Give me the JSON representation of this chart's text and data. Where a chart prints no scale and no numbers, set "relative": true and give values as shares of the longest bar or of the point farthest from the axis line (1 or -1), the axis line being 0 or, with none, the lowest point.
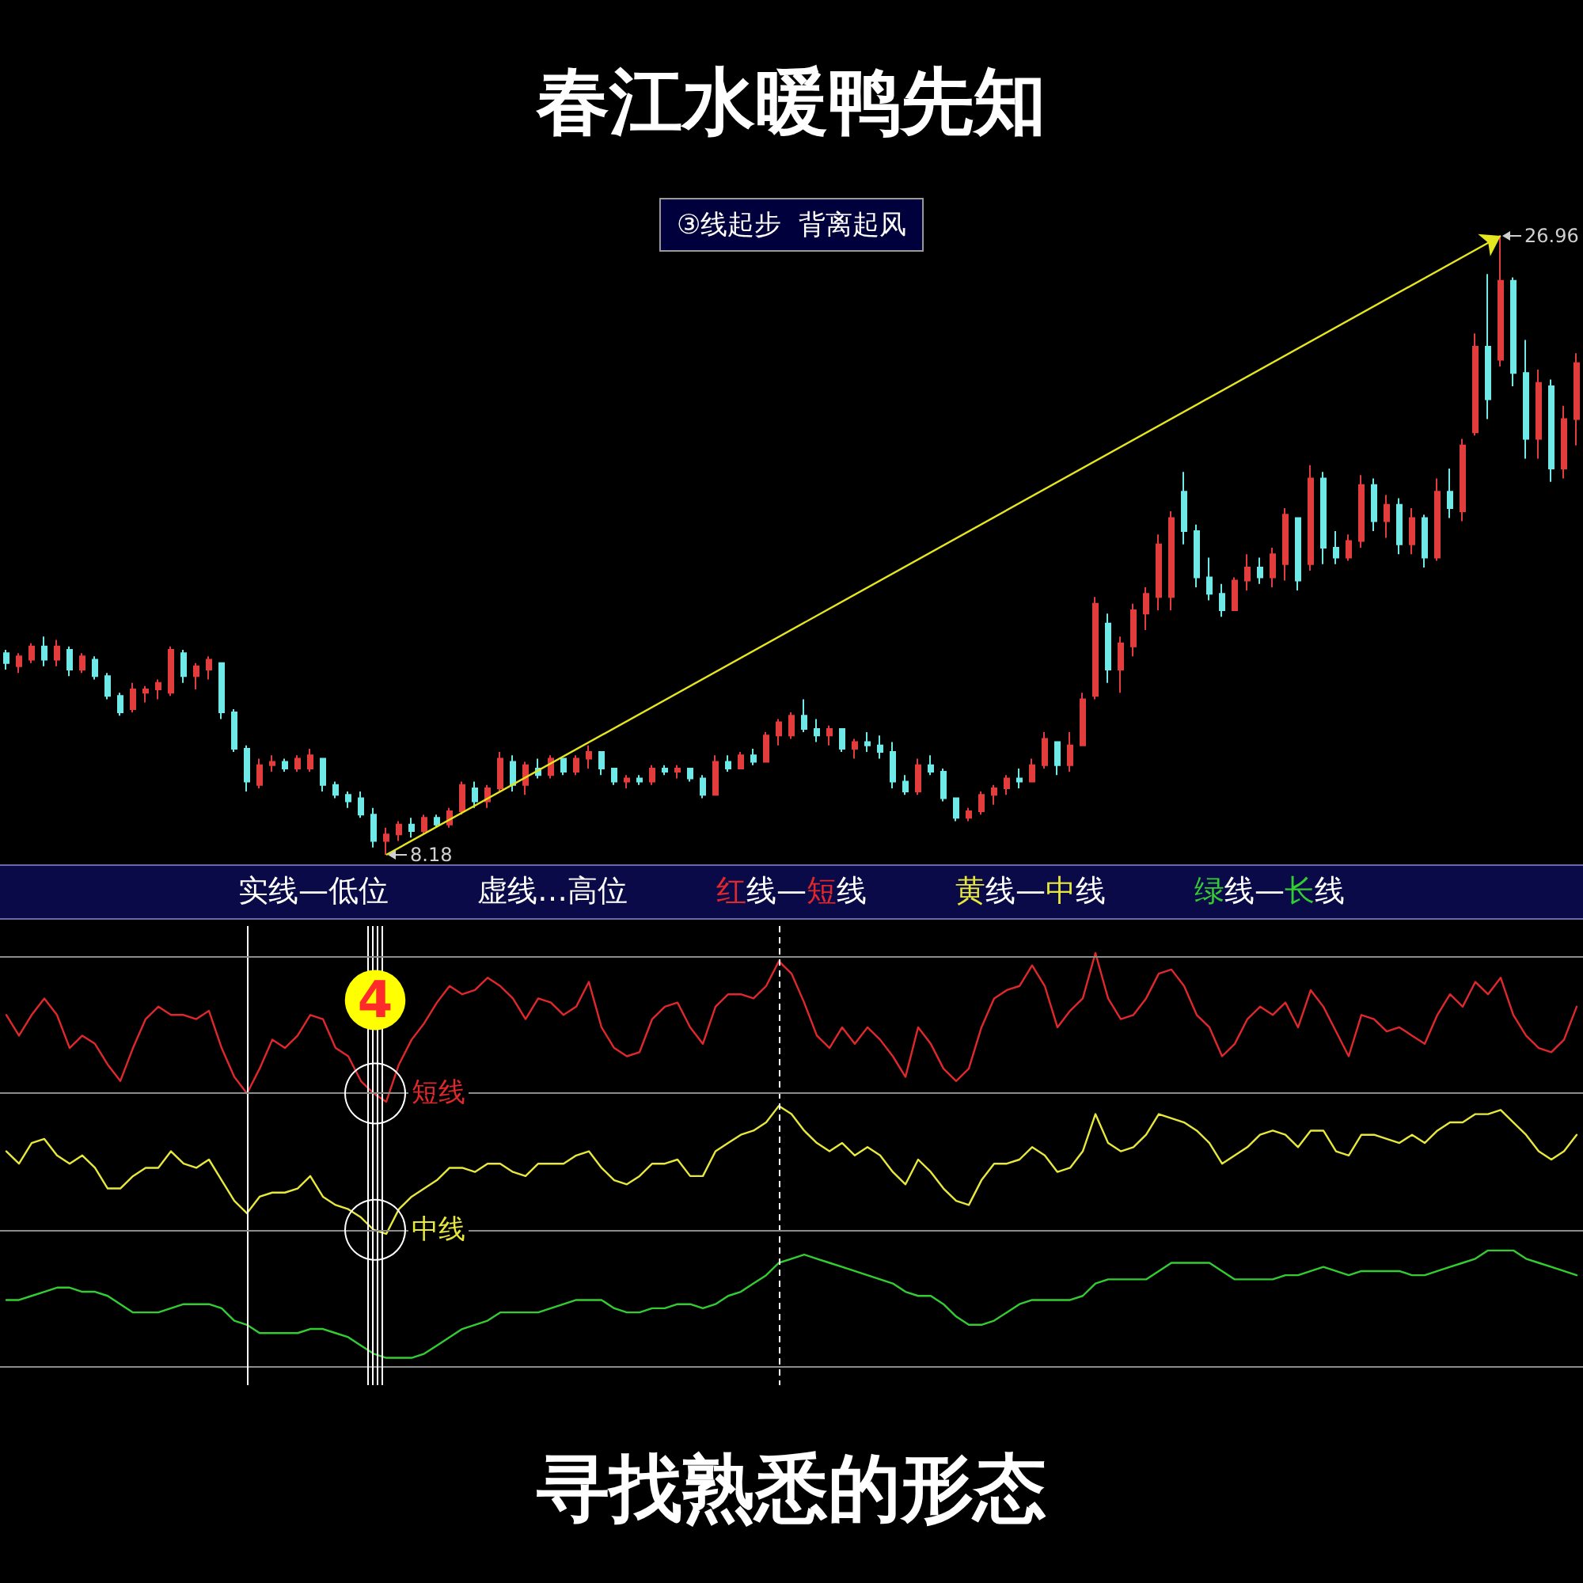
{
  "chart_data": [
    {
      "type": "candlestick",
      "title": "春江水暖鸭先知",
      "annotations": [
        "③线起步  背离起风"
      ],
      "tick_labels": false,
      "categories": [
        null,
        null,
        null,
        null,
        null,
        null,
        null,
        null,
        null,
        null,
        null,
        null,
        null,
        null,
        null,
        null,
        null,
        null,
        null,
        null,
        null,
        null,
        null,
        null,
        null,
        null,
        null,
        null,
        null,
        null,
        null,
        null,
        null,
        null,
        null,
        null,
        null,
        null,
        null,
        null,
        null,
        null,
        null,
        null,
        null,
        null,
        null,
        null,
        null,
        null,
        null,
        null,
        null,
        null,
        null,
        null,
        null,
        null,
        null,
        null,
        null,
        null,
        null,
        null,
        null,
        null,
        null,
        null,
        null,
        null,
        null,
        null,
        null,
        null,
        null,
        null,
        null,
        null,
        null,
        null,
        null,
        null,
        null,
        null,
        null,
        null,
        null,
        null,
        null,
        null,
        null,
        null,
        null,
        null,
        null,
        null,
        null,
        null,
        null,
        null,
        null,
        null,
        null,
        null,
        null,
        null,
        null,
        null,
        null,
        null,
        null,
        null,
        null,
        null,
        null,
        null,
        null,
        null,
        null,
        null,
        null,
        null,
        null,
        null,
        null
      ],
      "ohlc": [
        [
          14.3,
          14.4,
          13.8,
          14.0
        ],
        [
          13.9,
          14.3,
          13.7,
          14.2
        ],
        [
          14.1,
          14.6,
          14.0,
          14.5
        ],
        [
          14.5,
          14.8,
          13.9,
          14.1
        ],
        [
          14.1,
          14.7,
          13.9,
          14.5
        ],
        [
          14.4,
          14.5,
          13.6,
          13.8
        ],
        [
          13.8,
          14.3,
          13.7,
          14.2
        ],
        [
          14.1,
          14.2,
          13.5,
          13.6
        ],
        [
          13.6,
          13.7,
          12.9,
          13.0
        ],
        [
          13.0,
          13.1,
          12.4,
          12.5
        ],
        [
          12.6,
          13.4,
          12.5,
          13.2
        ],
        [
          13.1,
          13.3,
          12.8,
          13.2
        ],
        [
          13.2,
          13.5,
          12.9,
          13.4
        ],
        [
          13.1,
          14.5,
          13.0,
          14.4
        ],
        [
          14.3,
          14.4,
          13.4,
          13.6
        ],
        [
          13.6,
          14.0,
          13.2,
          13.9
        ],
        [
          13.8,
          14.2,
          13.5,
          14.1
        ],
        [
          14.0,
          14.0,
          12.3,
          12.5
        ],
        [
          12.5,
          12.6,
          11.3,
          11.4
        ],
        [
          11.4,
          11.5,
          10.1,
          10.4
        ],
        [
          10.3,
          11.1,
          10.2,
          10.9
        ],
        [
          10.9,
          11.2,
          10.7,
          11.0
        ],
        [
          11.0,
          11.1,
          10.7,
          10.8
        ],
        [
          10.8,
          11.2,
          10.7,
          11.1
        ],
        [
          10.8,
          11.4,
          10.7,
          11.2
        ],
        [
          11.1,
          11.1,
          10.1,
          10.3
        ],
        [
          10.3,
          10.4,
          9.9,
          10.0
        ],
        [
          10.0,
          10.1,
          9.6,
          9.8
        ],
        [
          9.9,
          10.1,
          9.3,
          9.4
        ],
        [
          9.4,
          9.6,
          8.4,
          8.6
        ],
        [
          8.6,
          9.0,
          8.18,
          8.8
        ],
        [
          8.8,
          9.2,
          8.6,
          9.1
        ],
        [
          9.1,
          9.3,
          8.7,
          8.9
        ],
        [
          8.9,
          9.4,
          8.8,
          9.3
        ],
        [
          9.3,
          9.4,
          9.0,
          9.1
        ],
        [
          9.1,
          9.6,
          9.0,
          9.5
        ],
        [
          9.5,
          10.4,
          9.4,
          10.3
        ],
        [
          10.2,
          10.4,
          9.6,
          9.8
        ],
        [
          9.8,
          10.3,
          9.6,
          10.2
        ],
        [
          10.2,
          11.3,
          10.1,
          11.1
        ],
        [
          11.0,
          11.2,
          10.1,
          10.3
        ],
        [
          10.3,
          11.0,
          10.0,
          10.9
        ],
        [
          10.8,
          11.1,
          10.5,
          10.6
        ],
        [
          10.6,
          11.2,
          10.5,
          11.1
        ],
        [
          11.1,
          11.1,
          10.6,
          10.7
        ],
        [
          10.7,
          11.2,
          10.6,
          11.1
        ],
        [
          11.1,
          11.5,
          10.8,
          11.3
        ],
        [
          11.3,
          11.3,
          10.6,
          10.8
        ],
        [
          10.8,
          10.8,
          10.3,
          10.4
        ],
        [
          10.4,
          10.6,
          10.2,
          10.5
        ],
        [
          10.5,
          10.6,
          10.3,
          10.4
        ],
        [
          10.4,
          10.9,
          10.3,
          10.8
        ],
        [
          10.8,
          10.9,
          10.6,
          10.7
        ],
        [
          10.7,
          10.9,
          10.5,
          10.8
        ],
        [
          10.8,
          10.8,
          10.4,
          10.5
        ],
        [
          10.5,
          10.6,
          9.9,
          10.0
        ],
        [
          10.0,
          11.2,
          10.0,
          11.0
        ],
        [
          11.0,
          11.2,
          10.7,
          10.8
        ],
        [
          10.8,
          11.3,
          10.8,
          11.2
        ],
        [
          11.2,
          11.4,
          10.9,
          11.0
        ],
        [
          11.0,
          11.9,
          11.0,
          11.8
        ],
        [
          11.8,
          12.3,
          11.5,
          12.2
        ],
        [
          11.8,
          12.5,
          11.7,
          12.4
        ],
        [
          12.4,
          12.9,
          11.9,
          12.0
        ],
        [
          12.0,
          12.3,
          11.6,
          11.8
        ],
        [
          11.8,
          12.1,
          11.5,
          12.0
        ],
        [
          12.0,
          12.0,
          11.3,
          11.4
        ],
        [
          11.4,
          11.7,
          11.1,
          11.6
        ],
        [
          11.6,
          11.9,
          11.3,
          11.5
        ],
        [
          11.5,
          11.8,
          11.1,
          11.3
        ],
        [
          11.3,
          11.6,
          10.2,
          10.4
        ],
        [
          10.4,
          10.6,
          10.0,
          10.1
        ],
        [
          10.1,
          11.1,
          10.0,
          10.9
        ],
        [
          10.9,
          11.2,
          10.6,
          10.7
        ],
        [
          10.7,
          10.8,
          9.8,
          9.9
        ],
        [
          9.9,
          9.9,
          9.2,
          9.3
        ],
        [
          9.3,
          9.6,
          9.2,
          9.5
        ],
        [
          9.5,
          10.1,
          9.4,
          10.0
        ],
        [
          10.0,
          10.3,
          9.7,
          10.2
        ],
        [
          10.2,
          10.6,
          10.0,
          10.5
        ],
        [
          10.5,
          10.8,
          10.2,
          10.4
        ],
        [
          10.4,
          11.1,
          10.4,
          10.9
        ],
        [
          10.9,
          11.9,
          10.8,
          11.7
        ],
        [
          11.6,
          11.6,
          10.6,
          10.9
        ],
        [
          10.9,
          11.9,
          10.7,
          11.5
        ],
        [
          11.5,
          13.1,
          11.5,
          12.9
        ],
        [
          13.0,
          16.0,
          12.9,
          15.8
        ],
        [
          15.2,
          15.5,
          13.4,
          13.8
        ],
        [
          13.8,
          14.8,
          13.1,
          14.6
        ],
        [
          14.5,
          15.8,
          14.2,
          15.6
        ],
        [
          15.5,
          16.3,
          15.0,
          16.1
        ],
        [
          16.0,
          17.9,
          15.6,
          17.6
        ],
        [
          16.0,
          18.6,
          15.6,
          18.4
        ],
        [
          19.2,
          19.8,
          17.6,
          18.0
        ],
        [
          18.0,
          18.2,
          16.3,
          16.6
        ],
        [
          16.6,
          17.2,
          15.9,
          16.1
        ],
        [
          16.1,
          16.4,
          15.4,
          15.6
        ],
        [
          15.6,
          16.6,
          15.6,
          16.5
        ],
        [
          16.5,
          17.3,
          16.2,
          16.9
        ],
        [
          16.9,
          17.2,
          16.4,
          16.6
        ],
        [
          16.6,
          17.5,
          16.3,
          17.3
        ],
        [
          17.0,
          18.7,
          16.5,
          18.5
        ],
        [
          18.4,
          18.4,
          16.2,
          16.5
        ],
        [
          17.0,
          20.0,
          16.8,
          19.6
        ],
        [
          19.6,
          19.8,
          17.0,
          17.5
        ],
        [
          17.5,
          18.0,
          17.0,
          17.2
        ],
        [
          17.2,
          17.9,
          17.1,
          17.7
        ],
        [
          17.7,
          19.7,
          17.5,
          19.4
        ],
        [
          19.4,
          19.6,
          18.0,
          18.3
        ],
        [
          18.3,
          19.1,
          17.8,
          18.8
        ],
        [
          18.8,
          19.0,
          17.3,
          17.6
        ],
        [
          17.6,
          18.7,
          17.3,
          18.4
        ],
        [
          18.4,
          18.5,
          16.9,
          17.2
        ],
        [
          17.2,
          19.6,
          17.1,
          19.2
        ],
        [
          19.2,
          19.9,
          18.4,
          18.7
        ],
        [
          18.6,
          20.8,
          18.3,
          20.6
        ],
        [
          21.0,
          24.0,
          20.9,
          23.6
        ],
        [
          23.6,
          25.8,
          21.4,
          22.0
        ],
        [
          23.2,
          26.96,
          23.0,
          25.6
        ],
        [
          25.6,
          25.7,
          22.4,
          22.8
        ],
        [
          22.8,
          23.8,
          20.2,
          20.8
        ],
        [
          20.8,
          22.9,
          20.2,
          22.5
        ],
        [
          22.4,
          22.6,
          19.5,
          19.9
        ],
        [
          19.9,
          21.8,
          19.6,
          21.4
        ],
        [
          21.4,
          23.4,
          20.6,
          23.1
        ]
      ],
      "colors": [
        "#6fe8e8",
        "#e23c3c",
        "#e23c3c",
        "#6fe8e8",
        "#e23c3c",
        "#6fe8e8",
        "#e23c3c",
        "#6fe8e8",
        "#6fe8e8",
        "#6fe8e8",
        "#e23c3c",
        "#e23c3c",
        "#e23c3c",
        "#e23c3c",
        "#6fe8e8",
        "#e23c3c",
        "#e23c3c",
        "#6fe8e8",
        "#6fe8e8",
        "#6fe8e8",
        "#e23c3c",
        "#e23c3c",
        "#6fe8e8",
        "#e23c3c",
        "#e23c3c",
        "#6fe8e8",
        "#6fe8e8",
        "#6fe8e8",
        "#6fe8e8",
        "#6fe8e8",
        "#e23c3c",
        "#e23c3c",
        "#6fe8e8",
        "#e23c3c",
        "#6fe8e8",
        "#e23c3c",
        "#e23c3c",
        "#6fe8e8",
        "#e23c3c",
        "#e23c3c",
        "#6fe8e8",
        "#e23c3c",
        "#6fe8e8",
        "#e23c3c",
        "#6fe8e8",
        "#e23c3c",
        "#e23c3c",
        "#6fe8e8",
        "#6fe8e8",
        "#e23c3c",
        "#6fe8e8",
        "#e23c3c",
        "#6fe8e8",
        "#e23c3c",
        "#6fe8e8",
        "#6fe8e8",
        "#e23c3c",
        "#6fe8e8",
        "#e23c3c",
        "#6fe8e8",
        "#e23c3c",
        "#e23c3c",
        "#e23c3c",
        "#6fe8e8",
        "#6fe8e8",
        "#e23c3c",
        "#6fe8e8",
        "#e23c3c",
        "#6fe8e8",
        "#6fe8e8",
        "#6fe8e8",
        "#6fe8e8",
        "#e23c3c",
        "#6fe8e8",
        "#6fe8e8",
        "#6fe8e8",
        "#e23c3c",
        "#e23c3c",
        "#e23c3c",
        "#e23c3c",
        "#6fe8e8",
        "#e23c3c",
        "#e23c3c",
        "#6fe8e8",
        "#e23c3c",
        "#e23c3c",
        "#e23c3c",
        "#6fe8e8",
        "#e23c3c",
        "#e23c3c",
        "#e23c3c",
        "#e23c3c",
        "#e23c3c",
        "#6fe8e8",
        "#6fe8e8",
        "#6fe8e8",
        "#6fe8e8",
        "#e23c3c",
        "#e23c3c",
        "#6fe8e8",
        "#e23c3c",
        "#e23c3c",
        "#6fe8e8",
        "#e23c3c",
        "#6fe8e8",
        "#6fe8e8",
        "#e23c3c",
        "#e23c3c",
        "#6fe8e8",
        "#e23c3c",
        "#6fe8e8",
        "#e23c3c",
        "#6fe8e8",
        "#e23c3c",
        "#6fe8e8",
        "#e23c3c",
        "#e23c3c",
        "#6fe8e8",
        "#e23c3c",
        "#6fe8e8",
        "#6fe8e8",
        "#e23c3c",
        "#6fe8e8",
        "#e23c3c",
        "#e23c3c"
      ],
      "value_labels": [
        null,
        null,
        null,
        null,
        null,
        null,
        null,
        null,
        null,
        null,
        null,
        null,
        null,
        null,
        null,
        null,
        null,
        null,
        null,
        null,
        null,
        null,
        null,
        null,
        null,
        null,
        null,
        null,
        null,
        null,
        "8.18",
        null,
        null,
        null,
        null,
        null,
        null,
        null,
        null,
        null,
        null,
        null,
        null,
        null,
        null,
        null,
        null,
        null,
        null,
        null,
        null,
        null,
        null,
        null,
        null,
        null,
        null,
        null,
        null,
        null,
        null,
        null,
        null,
        null,
        null,
        null,
        null,
        null,
        null,
        null,
        null,
        null,
        null,
        null,
        null,
        null,
        null,
        null,
        null,
        null,
        null,
        null,
        null,
        null,
        null,
        null,
        null,
        null,
        null,
        null,
        null,
        null,
        null,
        null,
        null,
        null,
        null,
        null,
        null,
        null,
        null,
        null,
        null,
        null,
        null,
        null,
        null,
        null,
        null,
        null,
        null,
        null,
        null,
        null,
        null,
        null,
        null,
        null,
        "26.96",
        null,
        null,
        null,
        null,
        null,
        null
      ]
    },
    {
      "type": "line",
      "title": "寻找熟悉的形态",
      "relative": true,
      "tick_labels": false,
      "annotations": [
        "4",
        "实线—低位",
        "虚线…高位",
        "红线—短线",
        "黄线—中线",
        "绿线—长线"
      ],
      "categories": [
        null,
        null,
        null,
        null,
        null,
        null,
        null,
        null,
        null,
        null,
        null,
        null,
        null,
        null,
        null,
        null,
        null,
        null,
        null,
        null,
        null,
        null,
        null,
        null,
        null,
        null,
        null,
        null,
        null,
        null,
        null,
        null,
        null,
        null,
        null,
        null,
        null,
        null,
        null,
        null,
        null,
        null,
        null,
        null,
        null,
        null,
        null,
        null,
        null,
        null,
        null,
        null,
        null,
        null,
        null,
        null,
        null,
        null,
        null,
        null,
        null,
        null,
        null,
        null,
        null,
        null,
        null,
        null,
        null,
        null,
        null,
        null,
        null,
        null,
        null,
        null,
        null,
        null,
        null,
        null,
        null,
        null,
        null,
        null,
        null,
        null,
        null,
        null,
        null,
        null,
        null,
        null,
        null,
        null,
        null,
        null,
        null,
        null,
        null,
        null,
        null,
        null,
        null,
        null,
        null,
        null,
        null,
        null,
        null,
        null,
        null,
        null,
        null,
        null,
        null,
        null,
        null,
        null,
        null,
        null,
        null,
        null,
        null,
        null,
        null
      ],
      "ref_lines": [
        {
          "axis": "y",
          "value": 0.99,
          "color": "#8c8c8c"
        },
        {
          "axis": "y",
          "value": 0.66,
          "color": "#8c8c8c"
        },
        {
          "axis": "y",
          "value": 0.33,
          "color": "#8c8c8c"
        }
      ],
      "series": [
        {
          "name": "短线",
          "color": "#e0282c",
          "values": [
            0.85,
            0.8,
            0.85,
            0.89,
            0.85,
            0.77,
            0.8,
            0.78,
            0.73,
            0.69,
            0.77,
            0.84,
            0.87,
            0.85,
            0.85,
            0.84,
            0.86,
            0.77,
            0.7,
            0.66,
            0.72,
            0.79,
            0.77,
            0.8,
            0.85,
            0.84,
            0.77,
            0.75,
            0.69,
            0.66,
            0.64,
            0.73,
            0.79,
            0.83,
            0.88,
            0.92,
            0.9,
            0.91,
            0.94,
            0.92,
            0.89,
            0.84,
            0.89,
            0.88,
            0.85,
            0.87,
            0.93,
            0.82,
            0.77,
            0.75,
            0.76,
            0.84,
            0.87,
            0.88,
            0.82,
            0.78,
            0.87,
            0.9,
            0.9,
            0.89,
            0.92,
            0.98,
            0.95,
            0.88,
            0.8,
            0.77,
            0.82,
            0.78,
            0.82,
            0.79,
            0.75,
            0.7,
            0.82,
            0.78,
            0.72,
            0.69,
            0.72,
            0.82,
            0.89,
            0.91,
            0.92,
            0.97,
            0.92,
            0.82,
            0.86,
            0.89,
            1,
            0.89,
            0.84,
            0.85,
            0.89,
            0.95,
            0.96,
            0.92,
            0.85,
            0.82,
            0.75,
            0.78,
            0.84,
            0.87,
            0.85,
            0.88,
            0.82,
            0.91,
            0.87,
            0.81,
            0.75,
            0.85,
            0.84,
            0.81,
            0.82,
            0.8,
            0.78,
            0.85,
            0.9,
            0.87,
            0.93,
            0.9,
            0.94,
            0.85,
            0.8,
            0.77,
            0.76,
            0.79,
            0.87
          ]
        },
        {
          "name": "中线",
          "color": "#e8e83c",
          "values": [
            0.52,
            0.49,
            0.54,
            0.55,
            0.51,
            0.49,
            0.51,
            0.48,
            0.43,
            0.43,
            0.46,
            0.48,
            0.48,
            0.52,
            0.49,
            0.48,
            0.5,
            0.45,
            0.4,
            0.37,
            0.41,
            0.42,
            0.42,
            0.43,
            0.46,
            0.41,
            0.39,
            0.38,
            0.36,
            0.33,
            0.32,
            0.38,
            0.41,
            0.43,
            0.45,
            0.48,
            0.48,
            0.47,
            0.49,
            0.49,
            0.47,
            0.46,
            0.49,
            0.49,
            0.49,
            0.51,
            0.52,
            0.48,
            0.45,
            0.44,
            0.46,
            0.49,
            0.49,
            0.5,
            0.46,
            0.46,
            0.52,
            0.54,
            0.56,
            0.57,
            0.59,
            0.63,
            0.61,
            0.57,
            0.54,
            0.52,
            0.54,
            0.51,
            0.53,
            0.51,
            0.47,
            0.44,
            0.5,
            0.47,
            0.43,
            0.4,
            0.39,
            0.45,
            0.49,
            0.49,
            0.5,
            0.53,
            0.51,
            0.47,
            0.48,
            0.52,
            0.61,
            0.54,
            0.52,
            0.53,
            0.56,
            0.61,
            0.6,
            0.59,
            0.57,
            0.54,
            0.49,
            0.51,
            0.53,
            0.56,
            0.57,
            0.56,
            0.53,
            0.57,
            0.57,
            0.52,
            0.51,
            0.56,
            0.56,
            0.55,
            0.54,
            0.56,
            0.54,
            0.57,
            0.59,
            0.59,
            0.61,
            0.61,
            0.62,
            0.59,
            0.56,
            0.52,
            0.5,
            0.52,
            0.56
          ]
        },
        {
          "color": "#33cc33",
          "values": [
            0.16,
            0.16,
            0.17,
            0.18,
            0.19,
            0.19,
            0.18,
            0.18,
            0.17,
            0.15,
            0.13,
            0.13,
            0.13,
            0.14,
            0.15,
            0.15,
            0.15,
            0.14,
            0.11,
            0.1,
            0.08,
            0.08,
            0.08,
            0.08,
            0.09,
            0.09,
            0.08,
            0.07,
            0.05,
            0.03,
            0.02,
            0.02,
            0.02,
            0.03,
            0.05,
            0.07,
            0.09,
            0.1,
            0.11,
            0.13,
            0.13,
            0.13,
            0.13,
            0.14,
            0.15,
            0.16,
            0.16,
            0.16,
            0.14,
            0.13,
            0.13,
            0.14,
            0.14,
            0.15,
            0.15,
            0.14,
            0.15,
            0.17,
            0.18,
            0.2,
            0.22,
            0.25,
            0.26,
            0.27,
            0.26,
            0.25,
            0.24,
            0.23,
            0.22,
            0.21,
            0.2,
            0.18,
            0.17,
            0.17,
            0.15,
            0.12,
            0.1,
            0.1,
            0.11,
            0.13,
            0.15,
            0.16,
            0.16,
            0.16,
            0.16,
            0.17,
            0.2,
            0.21,
            0.21,
            0.21,
            0.21,
            0.23,
            0.25,
            0.25,
            0.25,
            0.25,
            0.23,
            0.21,
            0.21,
            0.21,
            0.21,
            0.22,
            0.22,
            0.23,
            0.24,
            0.23,
            0.22,
            0.23,
            0.23,
            0.23,
            0.23,
            0.22,
            0.22,
            0.23,
            0.24,
            0.25,
            0.26,
            0.28,
            0.28,
            0.28,
            0.26,
            0.25,
            0.24,
            0.23,
            0.22
          ]
        }
      ]
    }
  ]
}
